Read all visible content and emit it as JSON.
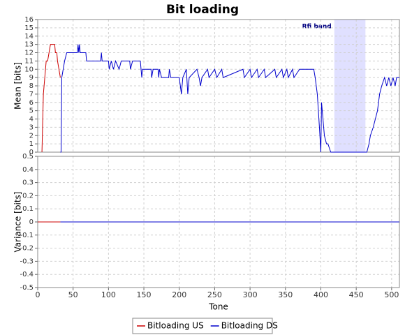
{
  "chart_data": [
    {
      "type": "line",
      "title": "Bit loading",
      "ylabel": "Mean [bits]",
      "xlim": [
        0,
        511
      ],
      "xticks": [
        0,
        50,
        100,
        150,
        200,
        250,
        300,
        350,
        400,
        450,
        500
      ],
      "ylim": [
        0,
        16
      ],
      "yticks": [
        0,
        1,
        2,
        3,
        4,
        5,
        6,
        7,
        8,
        9,
        10,
        11,
        12,
        13,
        14,
        15,
        16
      ],
      "grid": true,
      "band": {
        "label": "Rfi band",
        "range": [
          419,
          463
        ],
        "color": "#e0e0ff"
      },
      "series": [
        {
          "name": "Bitloading US",
          "color": "#cc0000",
          "x": [
            6,
            8,
            10,
            12,
            14,
            16,
            18,
            20,
            22,
            24,
            25,
            27,
            28,
            30,
            32
          ],
          "values": [
            0,
            7,
            9,
            11,
            11,
            12,
            13,
            13,
            13,
            13,
            12,
            12,
            11,
            10,
            9
          ]
        },
        {
          "name": "Bitloading DS",
          "color": "#0000cc",
          "x": [
            32,
            33,
            34,
            36,
            38,
            41,
            56,
            57,
            58,
            59,
            60,
            68,
            69,
            89,
            90,
            91,
            100,
            101,
            104,
            107,
            110,
            115,
            118,
            130,
            131,
            134,
            145,
            146,
            147,
            148,
            160,
            161,
            163,
            170,
            171,
            172,
            175,
            185,
            186,
            188,
            200,
            203,
            205,
            210,
            212,
            214,
            225,
            228,
            230,
            232,
            240,
            242,
            250,
            253,
            260,
            262,
            290,
            292,
            300,
            302,
            310,
            312,
            320,
            322,
            335,
            337,
            345,
            347,
            352,
            354,
            360,
            362,
            370,
            390,
            392,
            395,
            398,
            400,
            401,
            403,
            405,
            408,
            410,
            414,
            465,
            468,
            470,
            474,
            477,
            480,
            483,
            486,
            490,
            493,
            496,
            499,
            502,
            505,
            507,
            511
          ],
          "values": [
            0,
            0,
            9,
            10,
            11,
            12,
            12,
            13,
            12,
            13,
            12,
            12,
            11,
            11,
            12,
            11,
            11,
            10,
            11,
            10,
            11,
            10,
            11,
            11,
            10,
            11,
            11,
            10,
            9,
            10,
            10,
            9,
            10,
            10,
            9,
            10,
            9,
            9,
            10,
            9,
            9,
            7,
            9,
            10,
            7,
            9,
            10,
            9,
            8,
            9,
            10,
            9,
            10,
            9,
            10,
            9,
            10,
            9,
            10,
            9,
            10,
            9,
            10,
            9,
            10,
            9,
            10,
            9,
            10,
            9,
            10,
            9,
            10,
            10,
            9,
            7,
            3,
            0,
            6,
            4,
            2,
            1,
            1,
            0,
            0,
            1,
            2,
            3,
            4,
            5,
            7,
            8,
            9,
            8,
            9,
            8,
            9,
            8,
            9,
            9
          ]
        }
      ]
    },
    {
      "type": "line",
      "ylabel": "Variance [bits]",
      "xlabel": "Tone",
      "xlim": [
        0,
        511
      ],
      "xticks": [
        0,
        50,
        100,
        150,
        200,
        250,
        300,
        350,
        400,
        450,
        500
      ],
      "ylim": [
        -0.5,
        0.5
      ],
      "yticks": [
        -0.5,
        -0.4,
        -0.3,
        -0.2,
        -0.1,
        0,
        0.1,
        0.2,
        0.3,
        0.4,
        0.5
      ],
      "grid": true,
      "series": [
        {
          "color": "#cc0000",
          "x": [
            0,
            32
          ],
          "values": [
            0,
            0
          ]
        },
        {
          "color": "#0000cc",
          "x": [
            32,
            511
          ],
          "values": [
            0,
            0
          ]
        }
      ]
    }
  ]
}
